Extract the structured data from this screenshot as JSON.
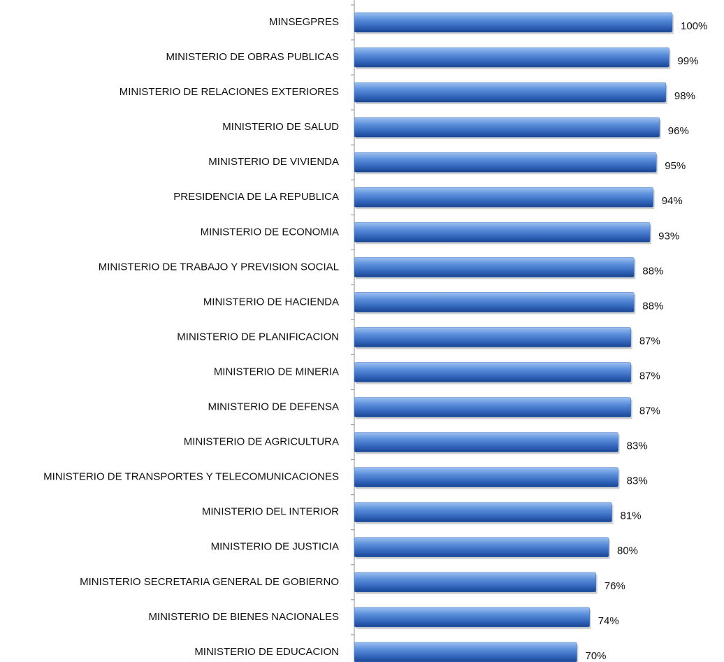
{
  "chart_data": {
    "type": "bar",
    "orientation": "horizontal",
    "categories": [
      "MINSEGPRES",
      "MINISTERIO DE OBRAS PUBLICAS",
      "MINISTERIO DE RELACIONES EXTERIORES",
      "MINISTERIO DE SALUD",
      "MINISTERIO DE VIVIENDA",
      "PRESIDENCIA DE LA REPUBLICA",
      "MINISTERIO DE ECONOMIA",
      "MINISTERIO DE TRABAJO Y PREVISION SOCIAL",
      "MINISTERIO DE HACIENDA",
      "MINISTERIO DE PLANIFICACION",
      "MINISTERIO DE MINERIA",
      "MINISTERIO DE DEFENSA",
      "MINISTERIO DE AGRICULTURA",
      "MINISTERIO DE TRANSPORTES Y TELECOMUNICACIONES",
      "MINISTERIO DEL INTERIOR",
      "MINISTERIO DE JUSTICIA",
      "MINISTERIO SECRETARIA GENERAL DE GOBIERNO",
      "MINISTERIO DE BIENES NACIONALES",
      "MINISTERIO DE EDUCACION"
    ],
    "values": [
      100,
      99,
      98,
      96,
      95,
      94,
      93,
      88,
      88,
      87,
      87,
      87,
      83,
      83,
      81,
      80,
      76,
      74,
      70
    ],
    "value_labels": [
      "100%",
      "99%",
      "98%",
      "96%",
      "95%",
      "94%",
      "93%",
      "88%",
      "88%",
      "87%",
      "87%",
      "87%",
      "83%",
      "83%",
      "81%",
      "80%",
      "76%",
      "74%",
      "70%"
    ],
    "color": "#3a6fc4",
    "xlim": [
      0,
      100
    ]
  }
}
